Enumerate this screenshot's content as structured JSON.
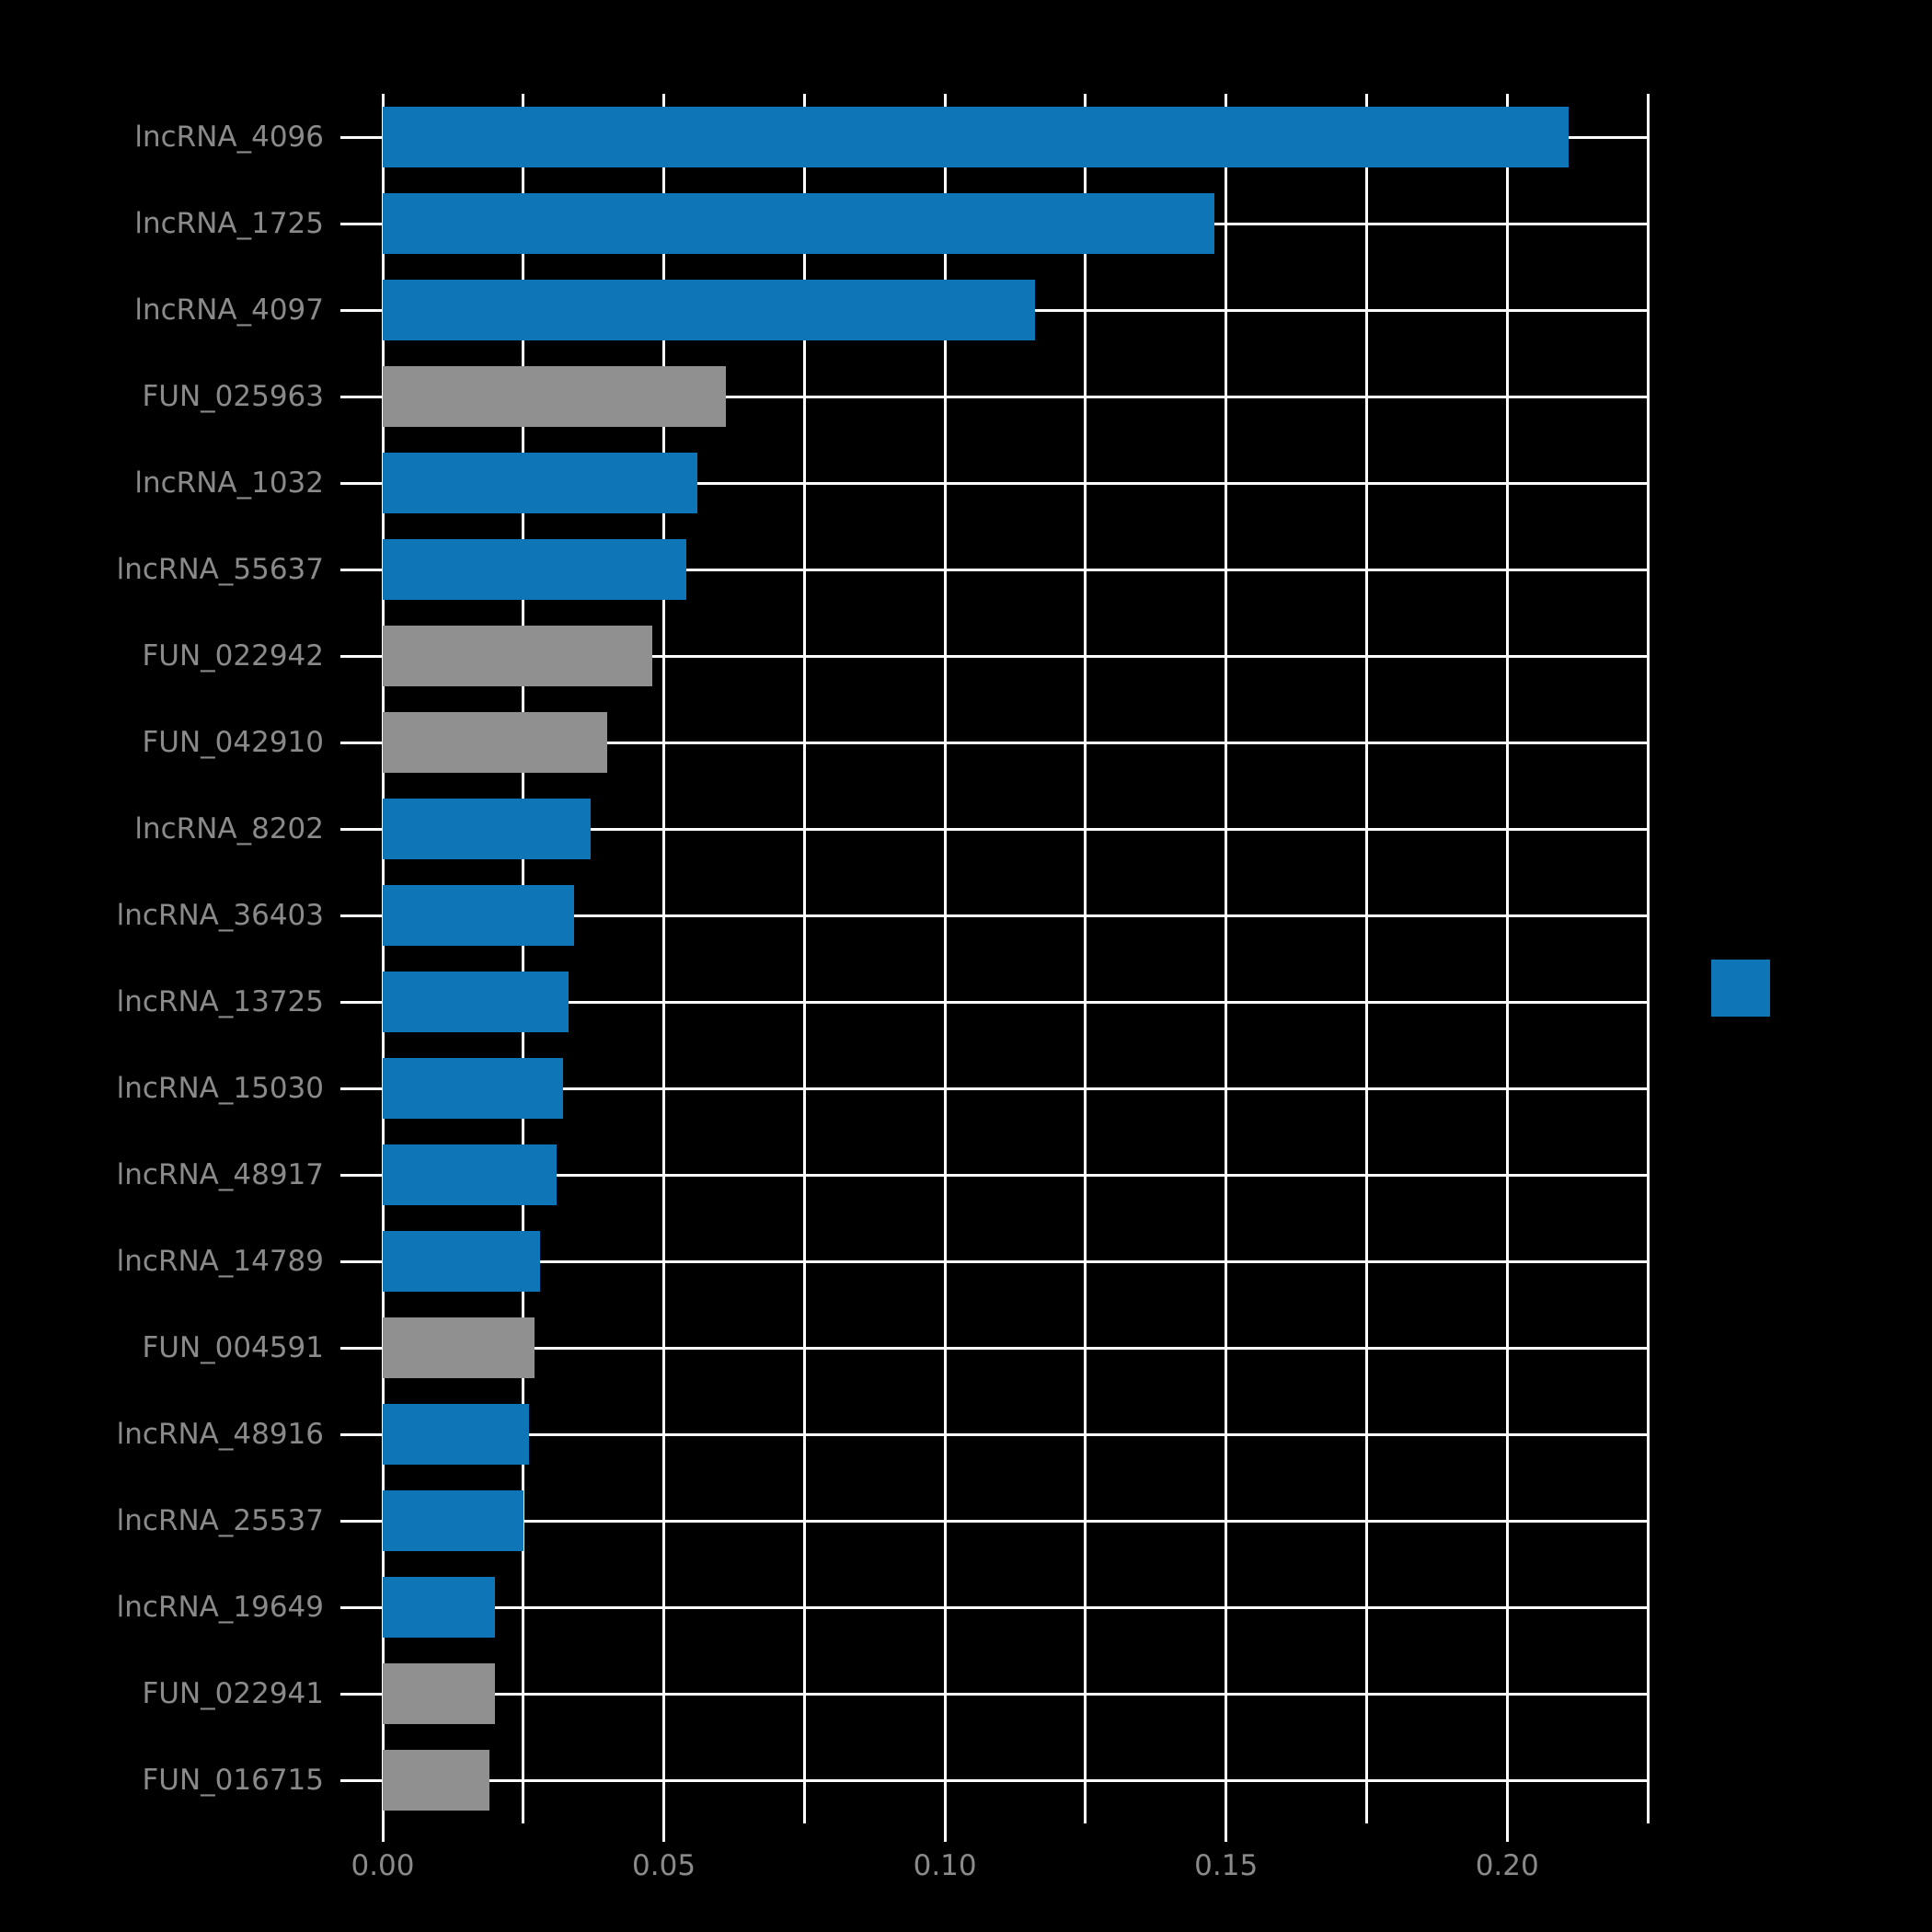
{
  "style": {
    "background": "#000000",
    "grid_color": "#ffffff",
    "label_color": "#8a8a8a",
    "bar_blue": "#0e76b6",
    "bar_gray": "#909090"
  },
  "chart_data": {
    "type": "bar",
    "orientation": "horizontal",
    "title": "",
    "xlabel": "",
    "ylabel": "",
    "xlim": [
      0,
      0.225
    ],
    "grid_minor_step": 0.025,
    "grid": true,
    "x_ticks": [
      0.0,
      0.05,
      0.1,
      0.15,
      0.2
    ],
    "x_tick_labels": [
      "0.00",
      "0.05",
      "0.10",
      "0.15",
      "0.20"
    ],
    "categories": [
      "lncRNA_4096",
      "lncRNA_1725",
      "lncRNA_4097",
      "FUN_025963",
      "lncRNA_1032",
      "lncRNA_55637",
      "FUN_022942",
      "FUN_042910",
      "lncRNA_8202",
      "lncRNA_36403",
      "lncRNA_13725",
      "lncRNA_15030",
      "lncRNA_48917",
      "lncRNA_14789",
      "FUN_004591",
      "lncRNA_48916",
      "lncRNA_25537",
      "lncRNA_19649",
      "FUN_022941",
      "FUN_016715"
    ],
    "values": [
      0.211,
      0.148,
      0.116,
      0.061,
      0.056,
      0.054,
      0.048,
      0.04,
      0.037,
      0.034,
      0.033,
      0.032,
      0.031,
      0.028,
      0.027,
      0.026,
      0.025,
      0.02,
      0.02,
      0.019
    ],
    "groups": [
      "lncRNA",
      "lncRNA",
      "lncRNA",
      "FUN",
      "lncRNA",
      "lncRNA",
      "FUN",
      "FUN",
      "lncRNA",
      "lncRNA",
      "lncRNA",
      "lncRNA",
      "lncRNA",
      "lncRNA",
      "FUN",
      "lncRNA",
      "lncRNA",
      "lncRNA",
      "FUN",
      "FUN"
    ],
    "colors": {
      "lncRNA": "#0e76b6",
      "FUN": "#909090"
    },
    "legend": {
      "position": "right",
      "items": [
        {
          "label": "",
          "color": "#0e76b6"
        }
      ]
    }
  }
}
